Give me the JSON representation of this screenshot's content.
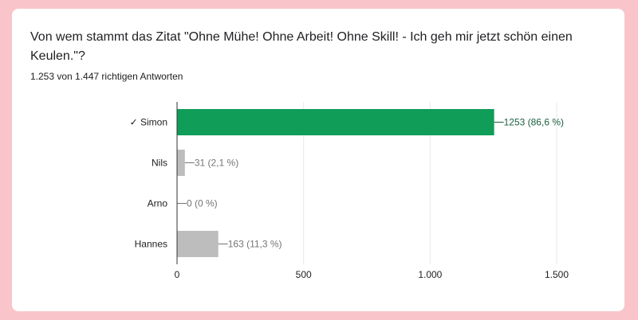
{
  "question": {
    "text": "Von wem stammt das Zitat \"Ohne Mühe! Ohne Arbeit! Ohne Skill! - Ich geh mir jetzt schön einen Keulen.\"?",
    "summary": "1.253 von 1.447 richtigen Antworten"
  },
  "colors": {
    "correct": "#0f9d58",
    "incorrect": "#bdbdbd",
    "correct_label": "#1b5e3f",
    "label": "#757575",
    "text": "#202124"
  },
  "chart_data": {
    "type": "bar",
    "orientation": "horizontal",
    "categories": [
      "✓ Simon",
      "Nils",
      "Arno",
      "Hannes"
    ],
    "values": [
      1253,
      31,
      0,
      163
    ],
    "correct": [
      true,
      false,
      false,
      false
    ],
    "data_labels": [
      "1253 (86,6 %)",
      "31 (2,1 %)",
      "0 (0 %)",
      "163 (11,3 %)"
    ],
    "x_ticks": [
      0,
      500,
      1000,
      1500
    ],
    "x_tick_labels": [
      "0",
      "500",
      "1.000",
      "1.500"
    ],
    "xlim": [
      0,
      1500
    ],
    "grid": true,
    "legend": "none"
  }
}
